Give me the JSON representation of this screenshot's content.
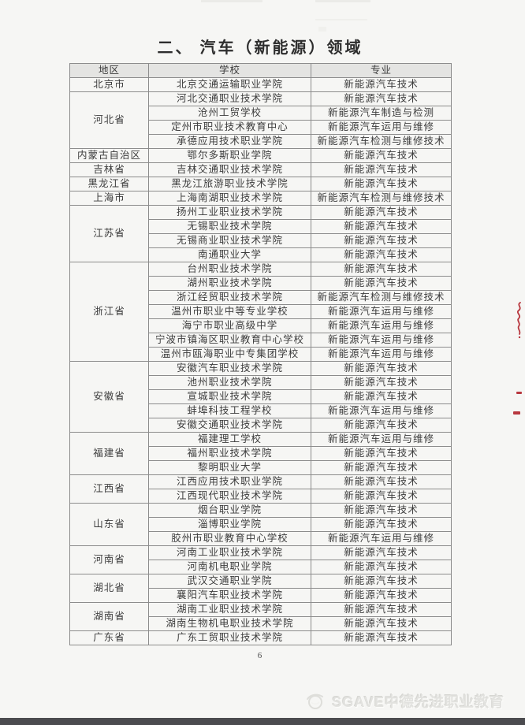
{
  "page": {
    "title": "二、 汽车（新能源）领域",
    "page_number": "6",
    "watermark_text": "SGAVE中德先进职业教育"
  },
  "table": {
    "headers": [
      "地区",
      "学校",
      "专业"
    ],
    "groups": [
      {
        "region": "北京市",
        "rows": [
          {
            "school": "北京交通运输职业学院",
            "major": "新能源汽车技术"
          }
        ]
      },
      {
        "region": "河北省",
        "rows": [
          {
            "school": "河北交通职业技术学院",
            "major": "新能源汽车技术"
          },
          {
            "school": "沧州工贸学校",
            "major": "新能源汽车制造与检测"
          },
          {
            "school": "定州市职业技术教育中心",
            "major": "新能源汽车运用与维修"
          },
          {
            "school": "承德应用技术职业学院",
            "major": "新能源汽车检测与维修技术"
          }
        ]
      },
      {
        "region": "内蒙古自治区",
        "rows": [
          {
            "school": "鄂尔多斯职业学院",
            "major": "新能源汽车技术"
          }
        ]
      },
      {
        "region": "吉林省",
        "rows": [
          {
            "school": "吉林交通职业技术学院",
            "major": "新能源汽车技术"
          }
        ]
      },
      {
        "region": "黑龙江省",
        "rows": [
          {
            "school": "黑龙江旅游职业技术学院",
            "major": "新能源汽车技术"
          }
        ]
      },
      {
        "region": "上海市",
        "rows": [
          {
            "school": "上海南湖职业技术学院",
            "major": "新能源汽车检测与维修技术"
          }
        ]
      },
      {
        "region": "江苏省",
        "rows": [
          {
            "school": "扬州工业职业技术学院",
            "major": "新能源汽车技术"
          },
          {
            "school": "无锡职业技术学院",
            "major": "新能源汽车技术"
          },
          {
            "school": "无锡商业职业技术学院",
            "major": "新能源汽车技术"
          },
          {
            "school": "南通职业大学",
            "major": "新能源汽车技术"
          }
        ]
      },
      {
        "region": "浙江省",
        "rows": [
          {
            "school": "台州职业技术学院",
            "major": "新能源汽车技术"
          },
          {
            "school": "湖州职业技术学院",
            "major": "新能源汽车技术"
          },
          {
            "school": "浙江经贸职业技术学院",
            "major": "新能源汽车检测与维修技术"
          },
          {
            "school": "温州市职业中等专业学校",
            "major": "新能源汽车运用与维修"
          },
          {
            "school": "海宁市职业高级中学",
            "major": "新能源汽车运用与维修"
          },
          {
            "school": "宁波市镇海区职业教育中心学校",
            "major": "新能源汽车运用与维修"
          },
          {
            "school": "温州市瓯海职业中专集团学校",
            "major": "新能源汽车运用与维修"
          }
        ]
      },
      {
        "region": "安徽省",
        "rows": [
          {
            "school": "安徽汽车职业技术学院",
            "major": "新能源汽车技术"
          },
          {
            "school": "池州职业技术学院",
            "major": "新能源汽车技术"
          },
          {
            "school": "宣城职业技术学院",
            "major": "新能源汽车技术"
          },
          {
            "school": "蚌埠科技工程学校",
            "major": "新能源汽车运用与维修"
          },
          {
            "school": "安徽交通职业技术学院",
            "major": "新能源汽车技术"
          }
        ]
      },
      {
        "region": "福建省",
        "rows": [
          {
            "school": "福建理工学校",
            "major": "新能源汽车运用与维修"
          },
          {
            "school": "福州职业技术学院",
            "major": "新能源汽车技术"
          },
          {
            "school": "黎明职业大学",
            "major": "新能源汽车技术"
          }
        ]
      },
      {
        "region": "江西省",
        "rows": [
          {
            "school": "江西应用技术职业学院",
            "major": "新能源汽车技术"
          },
          {
            "school": "江西现代职业技术学院",
            "major": "新能源汽车技术"
          }
        ]
      },
      {
        "region": "山东省",
        "rows": [
          {
            "school": "烟台职业学院",
            "major": "新能源汽车技术"
          },
          {
            "school": "淄博职业学院",
            "major": "新能源汽车技术"
          },
          {
            "school": "胶州市职业教育中心学校",
            "major": "新能源汽车运用与维修"
          }
        ]
      },
      {
        "region": "河南省",
        "rows": [
          {
            "school": "河南工业职业技术学院",
            "major": "新能源汽车技术"
          },
          {
            "school": "河南机电职业学院",
            "major": "新能源汽车技术"
          }
        ]
      },
      {
        "region": "湖北省",
        "rows": [
          {
            "school": "武汉交通职业学院",
            "major": "新能源汽车技术"
          },
          {
            "school": "襄阳汽车职业技术学院",
            "major": "新能源汽车技术"
          }
        ]
      },
      {
        "region": "湖南省",
        "rows": [
          {
            "school": "湖南工业职业技术学院",
            "major": "新能源汽车技术"
          },
          {
            "school": "湖南生物机电职业技术学院",
            "major": "新能源汽车技术"
          }
        ]
      },
      {
        "region": "广东省",
        "rows": [
          {
            "school": "广东工贸职业技术学院",
            "major": "新能源汽车技术"
          }
        ]
      }
    ]
  },
  "colors": {
    "page_bg": "#f6f6f4",
    "border": "#8c8c8c",
    "text": "#3c3c3c",
    "header_bg": "#e4e4e2",
    "red_mark": "#b8383f",
    "watermark": "#e2e2df",
    "bottom_bar": "#4b4b4f"
  }
}
